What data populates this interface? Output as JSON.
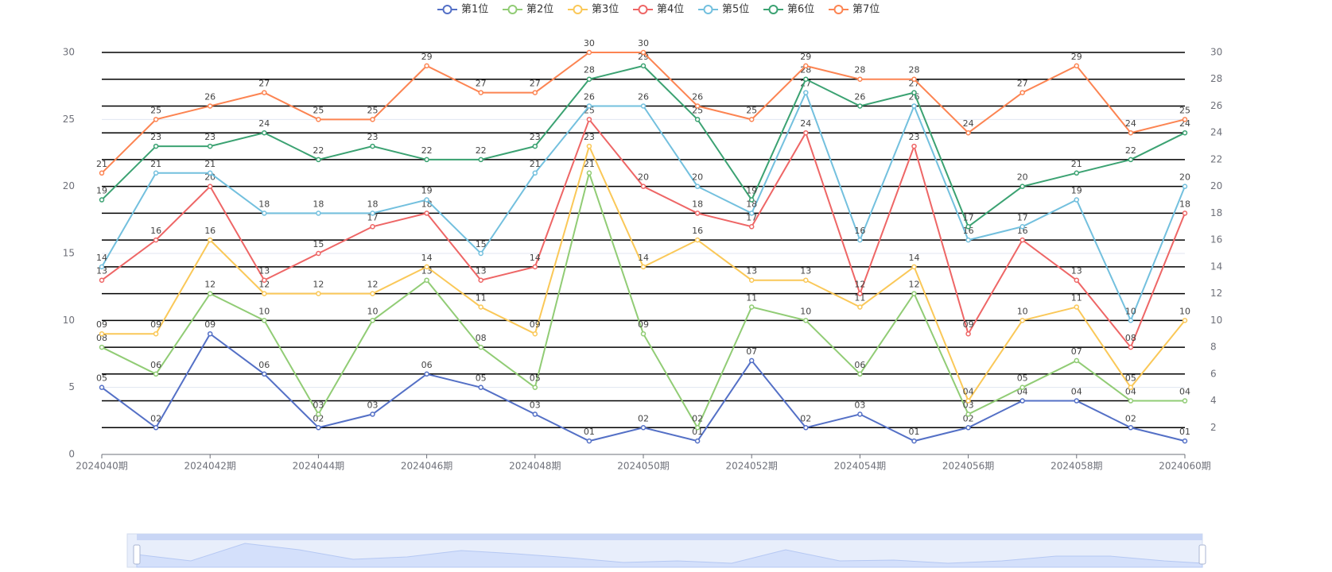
{
  "chart_data": {
    "type": "line",
    "categories": [
      "2024040期",
      null,
      "2024042期",
      null,
      "2024044期",
      null,
      "2024046期",
      null,
      "2024048期",
      null,
      "2024050期",
      null,
      "2024052期",
      null,
      "2024054期",
      null,
      "2024056期",
      null,
      "2024058期",
      null,
      "2024060期"
    ],
    "ylim": [
      0,
      30
    ],
    "yticks": [
      0,
      5,
      10,
      15,
      20,
      25,
      30
    ],
    "y2lim": [
      0,
      30
    ],
    "y2ticks": [
      2,
      4,
      6,
      8,
      10,
      12,
      14,
      16,
      18,
      20,
      22,
      24,
      26,
      28,
      30
    ],
    "grid": true,
    "legend": "top",
    "series": [
      {
        "name": "第1位",
        "color": "#5470c6",
        "values": [
          5,
          2,
          9,
          6,
          2,
          3,
          6,
          5,
          3,
          1,
          2,
          1,
          7,
          2,
          3,
          1,
          2,
          4,
          4,
          2,
          1
        ],
        "value_labels": [
          "05",
          "02",
          "09",
          "06",
          "02",
          "03",
          "06",
          "05",
          "03",
          "01",
          "02",
          "01",
          "07",
          "02",
          "03",
          "01",
          "02",
          "04",
          "04",
          "02",
          "01"
        ]
      },
      {
        "name": "第2位",
        "color": "#91cc75",
        "values": [
          8,
          6,
          12,
          10,
          3,
          10,
          13,
          8,
          5,
          21,
          9,
          2,
          11,
          10,
          6,
          12,
          3,
          5,
          7,
          4,
          4
        ],
        "value_labels": [
          "08",
          "06",
          "12",
          "10",
          "03",
          "10",
          "13",
          "08",
          "05",
          "21",
          "09",
          "02",
          "11",
          "10",
          "06",
          "12",
          "03",
          "05",
          "07",
          "04",
          "04"
        ]
      },
      {
        "name": "第3位",
        "color": "#fac858",
        "values": [
          9,
          9,
          16,
          12,
          12,
          12,
          14,
          11,
          9,
          23,
          14,
          16,
          13,
          13,
          11,
          14,
          4,
          10,
          11,
          5,
          10
        ],
        "value_labels": [
          "09",
          "09",
          "16",
          "12",
          "12",
          "12",
          "14",
          "11",
          "09",
          "23",
          "14",
          "16",
          "13",
          "13",
          "11",
          "14",
          "04",
          "10",
          "11",
          "05",
          "10"
        ]
      },
      {
        "name": "第4位",
        "color": "#ee6666",
        "values": [
          13,
          16,
          20,
          13,
          15,
          17,
          18,
          13,
          14,
          25,
          20,
          18,
          17,
          24,
          12,
          23,
          9,
          16,
          13,
          8,
          18
        ],
        "value_labels": [
          "13",
          "16",
          "20",
          "13",
          "15",
          "17",
          "18",
          "13",
          "14",
          "25",
          "20",
          "18",
          "17",
          "24",
          "12",
          "23",
          "09",
          "16",
          "13",
          "08",
          "18"
        ]
      },
      {
        "name": "第5位",
        "color": "#73c0de",
        "values": [
          14,
          21,
          21,
          18,
          18,
          18,
          19,
          15,
          21,
          26,
          26,
          20,
          18,
          27,
          16,
          26,
          16,
          17,
          19,
          10,
          20
        ],
        "value_labels": [
          "14",
          "21",
          "21",
          "18",
          "18",
          "18",
          "19",
          "15",
          "21",
          "26",
          "26",
          "20",
          "18",
          "27",
          "16",
          "26",
          "16",
          "17",
          "19",
          "10",
          "20"
        ]
      },
      {
        "name": "第6位",
        "color": "#3ba272",
        "values": [
          19,
          23,
          23,
          24,
          22,
          23,
          22,
          22,
          23,
          28,
          29,
          25,
          19,
          28,
          26,
          27,
          17,
          20,
          21,
          22,
          24
        ],
        "value_labels": [
          "19",
          "23",
          "23",
          "24",
          "22",
          "23",
          "22",
          "22",
          "23",
          "28",
          "29",
          "25",
          "19",
          "28",
          "26",
          "27",
          "17",
          "20",
          "21",
          "22",
          "24"
        ]
      },
      {
        "name": "第7位",
        "color": "#fc8452",
        "values": [
          21,
          25,
          26,
          27,
          25,
          25,
          29,
          27,
          27,
          30,
          30,
          26,
          25,
          29,
          28,
          28,
          24,
          27,
          29,
          24,
          25
        ],
        "value_labels": [
          "21",
          "25",
          "26",
          "27",
          "25",
          "25",
          "29",
          "27",
          "27",
          "30",
          "30",
          "26",
          "25",
          "29",
          "28",
          "28",
          "24",
          "27",
          "29",
          "24",
          "25"
        ]
      }
    ]
  }
}
